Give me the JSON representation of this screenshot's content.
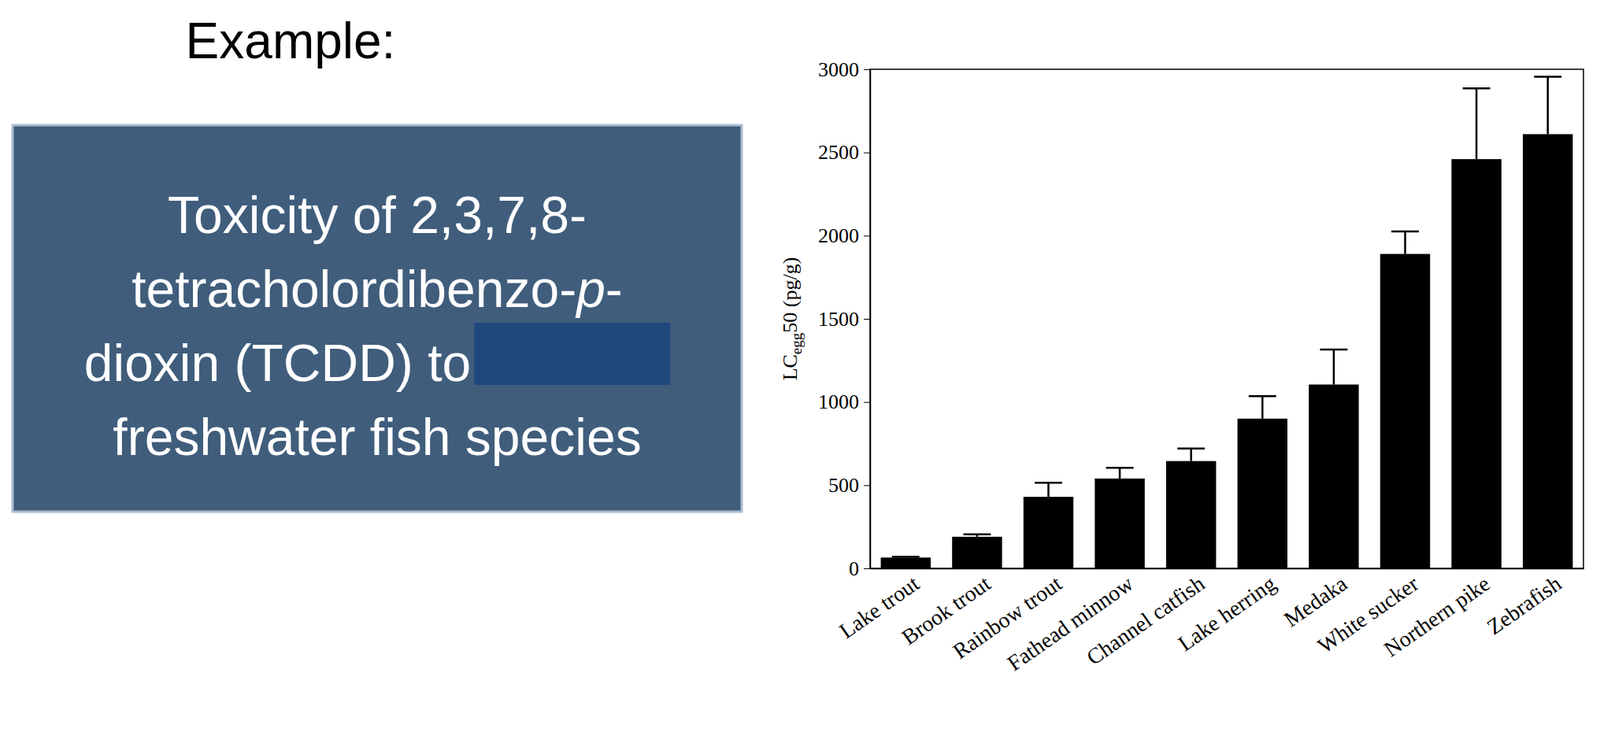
{
  "heading": "Example:",
  "box": {
    "lines": [
      [
        {
          "text": "Toxicity of 2,3,7,8-"
        }
      ],
      [
        {
          "text": "tetracholordibenzo-"
        },
        {
          "text": "p",
          "italic": true
        },
        {
          "text": "-"
        }
      ],
      [
        {
          "text": "dioxin (TCDD) to"
        }
      ],
      [
        {
          "text": "freshwater fish species"
        }
      ]
    ]
  },
  "chart_data": {
    "type": "bar",
    "ylabel": [
      {
        "text": "LC"
      },
      {
        "text": "egg",
        "sub": true
      },
      {
        "text": "50 (pg/g)"
      }
    ],
    "categories": [
      "Lake trout",
      "Brook trout",
      "Rainbow trout",
      "Fathead minnow",
      "Channel catfish",
      "Lake herring",
      "Medaka",
      "White sucker",
      "Northern pike",
      "Zebrafish"
    ],
    "values": [
      65,
      190,
      430,
      540,
      645,
      900,
      1105,
      1890,
      2460,
      2610
    ],
    "errors": [
      5,
      15,
      85,
      65,
      75,
      135,
      210,
      135,
      425,
      345
    ],
    "color": "#000000",
    "ylim": [
      0,
      3000
    ],
    "yticks": [
      0,
      500,
      1000,
      1500,
      2000,
      2500,
      3000
    ],
    "grid": false
  }
}
